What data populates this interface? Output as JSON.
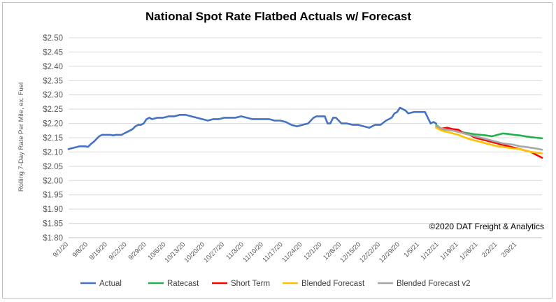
{
  "chart_data": {
    "type": "line",
    "title": "National Spot Rate Flatbed Actuals w/ Forecast",
    "xlabel": "",
    "ylabel": "Rolling 7-Day Rate Per Mile, ex. Fuel",
    "copyright": "©2020 DAT Freight & Analytics",
    "ylim": [
      1.8,
      2.5
    ],
    "ytick_step": 0.05,
    "yticks": [
      "$2.50",
      "$2.45",
      "$2.40",
      "$2.35",
      "$2.30",
      "$2.25",
      "$2.20",
      "$2.15",
      "$2.10",
      "$2.05",
      "$2.00",
      "$1.95",
      "$1.90",
      "$1.85",
      "$1.80"
    ],
    "x_day_range": [
      0,
      170
    ],
    "xtick_labels": [
      {
        "day": 0,
        "label": "9/1/20"
      },
      {
        "day": 7,
        "label": "9/8/20"
      },
      {
        "day": 14,
        "label": "9/15/20"
      },
      {
        "day": 21,
        "label": "9/22/20"
      },
      {
        "day": 28,
        "label": "9/29/20"
      },
      {
        "day": 35,
        "label": "10/6/20"
      },
      {
        "day": 42,
        "label": "10/13/20"
      },
      {
        "day": 49,
        "label": "10/20/20"
      },
      {
        "day": 56,
        "label": "10/27/20"
      },
      {
        "day": 63,
        "label": "11/3/20"
      },
      {
        "day": 70,
        "label": "11/10/20"
      },
      {
        "day": 77,
        "label": "11/17/20"
      },
      {
        "day": 84,
        "label": "11/24/20"
      },
      {
        "day": 91,
        "label": "12/1/20"
      },
      {
        "day": 98,
        "label": "12/8/20"
      },
      {
        "day": 105,
        "label": "12/15/20"
      },
      {
        "day": 112,
        "label": "12/22/20"
      },
      {
        "day": 119,
        "label": "12/29/20"
      },
      {
        "day": 126,
        "label": "1/5/21"
      },
      {
        "day": 133,
        "label": "1/12/21"
      },
      {
        "day": 140,
        "label": "1/19/21"
      },
      {
        "day": 147,
        "label": "1/26/21"
      },
      {
        "day": 154,
        "label": "2/2/21"
      },
      {
        "day": 161,
        "label": "2/9/21"
      }
    ],
    "series": [
      {
        "name": "Actual",
        "color": "#4472c4",
        "x": [
          0,
          2,
          4,
          6,
          7,
          8,
          9,
          10,
          11,
          12,
          13,
          14,
          15,
          16,
          17,
          18,
          19,
          20,
          21,
          22,
          23,
          24,
          25,
          26,
          27,
          28,
          29,
          30,
          32,
          34,
          36,
          38,
          40,
          42,
          44,
          46,
          48,
          50,
          52,
          54,
          56,
          58,
          60,
          62,
          64,
          66,
          68,
          70,
          72,
          74,
          76,
          78,
          80,
          82,
          84,
          86,
          88,
          89,
          90,
          92,
          93,
          94,
          95,
          96,
          98,
          100,
          102,
          104,
          106,
          108,
          110,
          112,
          114,
          116,
          117,
          118,
          119,
          120,
          121,
          122,
          124,
          126,
          128,
          130,
          131,
          132
        ],
        "values": [
          2.11,
          2.115,
          2.12,
          2.12,
          2.118,
          2.128,
          2.135,
          2.145,
          2.155,
          2.16,
          2.16,
          2.16,
          2.16,
          2.158,
          2.16,
          2.16,
          2.16,
          2.165,
          2.17,
          2.175,
          2.18,
          2.19,
          2.195,
          2.195,
          2.2,
          2.215,
          2.22,
          2.215,
          2.22,
          2.22,
          2.225,
          2.225,
          2.23,
          2.23,
          2.225,
          2.22,
          2.215,
          2.21,
          2.215,
          2.215,
          2.22,
          2.22,
          2.22,
          2.225,
          2.22,
          2.215,
          2.215,
          2.215,
          2.215,
          2.21,
          2.21,
          2.205,
          2.195,
          2.19,
          2.195,
          2.2,
          2.22,
          2.225,
          2.225,
          2.225,
          2.2,
          2.2,
          2.22,
          2.22,
          2.2,
          2.2,
          2.195,
          2.195,
          2.19,
          2.185,
          2.195,
          2.195,
          2.21,
          2.22,
          2.235,
          2.24,
          2.255,
          2.25,
          2.245,
          2.235,
          2.24,
          2.24,
          2.24,
          2.2,
          2.205,
          2.2
        ]
      },
      {
        "name": "Ratecast",
        "color": "#22b14c",
        "x": [
          132,
          134,
          136,
          138,
          140,
          142,
          144,
          146,
          148,
          150,
          152,
          154,
          156,
          158,
          160,
          162,
          164,
          166,
          168,
          170
        ],
        "values": [
          2.195,
          2.18,
          2.178,
          2.175,
          2.17,
          2.168,
          2.165,
          2.162,
          2.16,
          2.158,
          2.155,
          2.16,
          2.165,
          2.163,
          2.16,
          2.158,
          2.155,
          2.152,
          2.15,
          2.148
        ]
      },
      {
        "name": "Short Term",
        "color": "#ff0000",
        "x": [
          132,
          134,
          136,
          138,
          140,
          142,
          144,
          146,
          148,
          150,
          152,
          154,
          156,
          158,
          160,
          162,
          164,
          166,
          168,
          170
        ],
        "values": [
          2.19,
          2.182,
          2.185,
          2.18,
          2.178,
          2.165,
          2.16,
          2.15,
          2.145,
          2.14,
          2.135,
          2.13,
          2.125,
          2.12,
          2.115,
          2.11,
          2.105,
          2.1,
          2.09,
          2.08
        ]
      },
      {
        "name": "Blended Forecast",
        "color": "#ffc000",
        "x": [
          132,
          134,
          136,
          138,
          140,
          142,
          144,
          146,
          148,
          150,
          152,
          154,
          156,
          158,
          160,
          162,
          164,
          166,
          168,
          170
        ],
        "values": [
          2.185,
          2.175,
          2.17,
          2.165,
          2.16,
          2.152,
          2.145,
          2.14,
          2.135,
          2.13,
          2.125,
          2.12,
          2.118,
          2.115,
          2.112,
          2.11,
          2.105,
          2.1,
          2.098,
          2.095
        ]
      },
      {
        "name": "Blended Forecast v2",
        "color": "#a6a6a6",
        "x": [
          132,
          134,
          136,
          138,
          140,
          142,
          144,
          146,
          148,
          150,
          152,
          154,
          156,
          158,
          160,
          162,
          164,
          166,
          168,
          170
        ],
        "values": [
          2.192,
          2.182,
          2.178,
          2.175,
          2.17,
          2.165,
          2.16,
          2.155,
          2.15,
          2.145,
          2.14,
          2.135,
          2.13,
          2.128,
          2.125,
          2.12,
          2.118,
          2.115,
          2.112,
          2.108
        ]
      }
    ],
    "legend": {
      "position": "bottom",
      "items": [
        {
          "label": "Actual",
          "color": "#4472c4"
        },
        {
          "label": "Ratecast",
          "color": "#22b14c"
        },
        {
          "label": "Short Term",
          "color": "#ff0000"
        },
        {
          "label": "Blended Forecast",
          "color": "#ffc000"
        },
        {
          "label": "Blended Forecast v2",
          "color": "#a6a6a6"
        }
      ]
    },
    "grid": true
  }
}
